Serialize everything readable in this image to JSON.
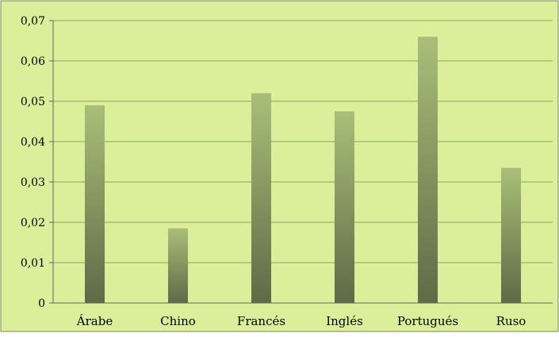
{
  "chart_data": {
    "type": "bar",
    "categories": [
      "Árabe",
      "Chino",
      "Francés",
      "Inglés",
      "Portugués",
      "Ruso"
    ],
    "series": [
      {
        "values": [
          0.049,
          0.0185,
          0.052,
          0.0475,
          0.066,
          0.0335
        ]
      }
    ],
    "yticks": [
      "0",
      "0,01",
      "0,02",
      "0,03",
      "0,04",
      "0,05",
      "0,06",
      "0,07"
    ],
    "ylim": [
      0,
      0.07
    ],
    "grid": true,
    "legend": "none",
    "colors": {
      "background": "#dbef9a",
      "border": "#7a8a55",
      "gridline": "#8aa05a",
      "axis": "#666666",
      "bar_top": "#a9bf78",
      "bar_bottom": "#5f6a47"
    }
  }
}
